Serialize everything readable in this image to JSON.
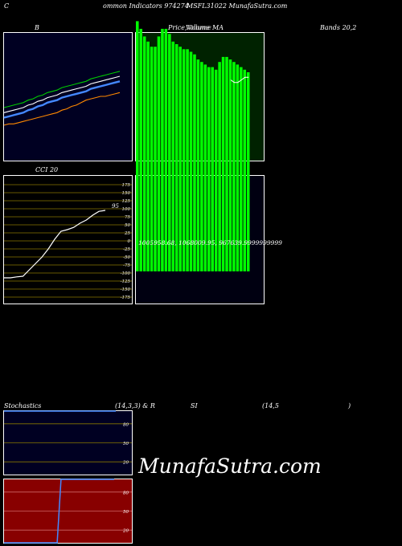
{
  "header": {
    "c_left": "C",
    "title_part1": "ommon Indicators 974274",
    "title_part2": "MSFL31022 MunafaSutra.com",
    "b_label": "B",
    "price_label": "Price,",
    "volume_label": "Volume",
    "ma_label": "MA",
    "overlap_label": "Volume",
    "bands_label": "Bands 20,2"
  },
  "cci": {
    "title": "CCI 20",
    "value_label": "95"
  },
  "stoch": {
    "title": "Stochastics",
    "params": "(14,3,3) & R",
    "si": "SI",
    "rsi_params": "(14,5",
    "close_paren": ")"
  },
  "watermark": "MunafaSutra.com",
  "volume_values_text": "1005958.68, 1068009.95, 967639.9999999999",
  "chart_data": [
    {
      "type": "line",
      "title": "Bollinger Bands 20,2",
      "series": [
        {
          "color": "#ffffff",
          "values": [
            147,
            148,
            149,
            150,
            151,
            153,
            154,
            156,
            157,
            159,
            160,
            161,
            163,
            164,
            165,
            166,
            167,
            168,
            170,
            171,
            172,
            173,
            174,
            175,
            176
          ]
        },
        {
          "color": "#00cc00",
          "values": [
            151,
            152,
            153,
            154,
            155,
            157,
            158,
            160,
            161,
            163,
            164,
            165,
            167,
            168,
            169,
            170,
            171,
            172,
            174,
            175,
            176,
            177,
            178,
            179,
            180
          ]
        },
        {
          "color": "#4488ff",
          "values": [
            143,
            144,
            145,
            146,
            147,
            149,
            150,
            152,
            153,
            155,
            156,
            157,
            159,
            160,
            161,
            162,
            163,
            164,
            166,
            167,
            168,
            169,
            170,
            171,
            172
          ]
        },
        {
          "color": "#ff8800",
          "values": [
            137,
            138,
            138,
            139,
            140,
            141,
            142,
            143,
            144,
            145,
            146,
            147,
            149,
            150,
            152,
            153,
            155,
            157,
            158,
            159,
            160,
            160,
            161,
            162,
            163
          ]
        }
      ],
      "ylim": [
        110,
        210
      ]
    },
    {
      "type": "bar",
      "title": "Price, Volume, MA",
      "bar_color": "#00ff00",
      "values": [
        98,
        95,
        92,
        90,
        88,
        88,
        92,
        95,
        95,
        93,
        90,
        89,
        88,
        87,
        87,
        86,
        85,
        83,
        82,
        81,
        80,
        80,
        79,
        82,
        84,
        84,
        83,
        82,
        81,
        80,
        79,
        78
      ],
      "ma_values": [
        null,
        null,
        null,
        null,
        null,
        null,
        null,
        null,
        null,
        null,
        null,
        null,
        null,
        null,
        null,
        null,
        null,
        null,
        null,
        null,
        null,
        null,
        null,
        null,
        null,
        null,
        75,
        74,
        74,
        75,
        76,
        76
      ],
      "ylim": [
        0,
        100
      ]
    },
    {
      "type": "line",
      "title": "CCI 20",
      "ylim": [
        -175,
        175
      ],
      "yticks": [
        175,
        150,
        125,
        100,
        75,
        50,
        25,
        0,
        -25,
        -50,
        -75,
        -100,
        -125,
        -150,
        -175
      ],
      "ytick_labels": [
        "175",
        "150",
        "125",
        "100",
        "75",
        "50",
        "25",
        "0",
        "-25",
        "-50",
        "-75",
        "-100",
        "-125",
        "-150",
        "-175"
      ],
      "values": [
        -115,
        -115,
        -112,
        -110,
        -90,
        -70,
        -50,
        -25,
        5,
        30,
        35,
        42,
        55,
        65,
        80,
        92,
        95
      ]
    },
    {
      "type": "line",
      "title": "Stochastics (14,3,3)",
      "ylim": [
        0,
        100
      ],
      "yticks": [
        80,
        50,
        20
      ],
      "ytick_labels": [
        "80",
        "50",
        "20"
      ],
      "values": [
        100,
        100,
        100,
        100,
        100,
        100,
        100,
        100,
        100,
        100,
        100,
        100,
        100,
        100,
        100
      ]
    },
    {
      "type": "line",
      "title": "RSI (14,5)",
      "ylim": [
        0,
        100
      ],
      "yticks": [
        80,
        50,
        20
      ],
      "ytick_labels": [
        "80",
        "50",
        "20"
      ],
      "values": [
        0,
        0,
        0,
        0,
        0,
        0,
        0,
        0,
        0,
        0,
        0,
        0,
        0,
        0,
        0,
        100,
        100,
        100,
        100,
        100,
        100,
        100,
        100,
        100,
        100,
        100,
        100,
        100,
        100,
        100
      ]
    }
  ]
}
